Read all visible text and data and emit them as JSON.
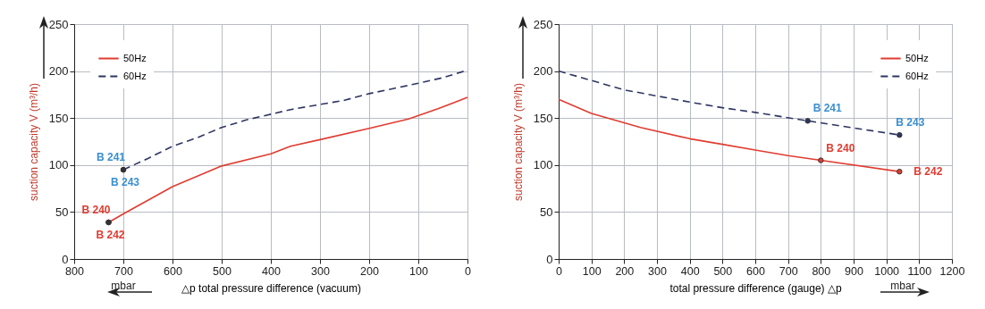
{
  "chart_data": [
    {
      "type": "line",
      "xlabel": "△p total pressure difference (vacuum)",
      "ylabel": "suction capacity V (m³/h)",
      "xlim": [
        800,
        0
      ],
      "xticks": [
        800,
        700,
        600,
        500,
        400,
        300,
        200,
        100,
        0
      ],
      "ylim": [
        0,
        250
      ],
      "yticks": [
        0,
        50,
        100,
        150,
        200,
        250
      ],
      "grid": true,
      "legend": "top left",
      "marker": "none",
      "series": [
        {
          "name": "50Hz",
          "color": "#e03c31",
          "line_style": "solid",
          "x": [
            730,
            700,
            600,
            500,
            400,
            360,
            300,
            200,
            120,
            60,
            0
          ],
          "values": [
            39,
            48,
            77,
            99,
            112,
            120,
            127,
            139,
            149,
            160,
            172
          ]
        },
        {
          "name": "60Hz",
          "color": "#2e3560",
          "line_style": "dashed",
          "x": [
            700,
            650,
            600,
            550,
            500,
            450,
            360,
            250,
            200,
            100,
            50,
            0
          ],
          "values": [
            95,
            107,
            120,
            129,
            140,
            148,
            159,
            169,
            176,
            187,
            193,
            201
          ]
        }
      ],
      "annotations": [
        {
          "text": "B 241",
          "x": 700,
          "y": 95
        },
        {
          "text": "B 243",
          "x": 700,
          "y": 95
        },
        {
          "text": "B 240",
          "x": 730,
          "y": 39
        },
        {
          "text": "B 242",
          "x": 730,
          "y": 39
        },
        "mbar"
      ]
    },
    {
      "type": "line",
      "xlabel": "total pressure difference (gauge) △p",
      "ylabel": "suction capacity V (m³/h)",
      "xlim": [
        0,
        1200
      ],
      "xticks": [
        0,
        100,
        200,
        300,
        400,
        500,
        600,
        700,
        800,
        900,
        1000,
        1100,
        1200
      ],
      "ylim": [
        0,
        250
      ],
      "yticks": [
        0,
        50,
        100,
        150,
        200,
        250
      ],
      "grid": true,
      "legend": "top right",
      "marker": "none",
      "series": [
        {
          "name": "50Hz",
          "color": "#e03c31",
          "line_style": "solid",
          "x": [
            0,
            100,
            250,
            400,
            500,
            600,
            700,
            800,
            1040
          ],
          "values": [
            170,
            155,
            140,
            128,
            122,
            116,
            110,
            105,
            93
          ]
        },
        {
          "name": "60Hz",
          "color": "#2e3560",
          "line_style": "dashed",
          "x": [
            0,
            200,
            400,
            500,
            600,
            760,
            1040
          ],
          "values": [
            200,
            180,
            167,
            161,
            156,
            147,
            132
          ]
        }
      ],
      "annotations": [
        {
          "text": "B 241",
          "x": 760,
          "y": 147
        },
        {
          "text": "B 243",
          "x": 1040,
          "y": 132
        },
        {
          "text": "B 240",
          "x": 800,
          "y": 105
        },
        {
          "text": "B 242",
          "x": 1040,
          "y": 93
        },
        "mbar"
      ]
    }
  ]
}
